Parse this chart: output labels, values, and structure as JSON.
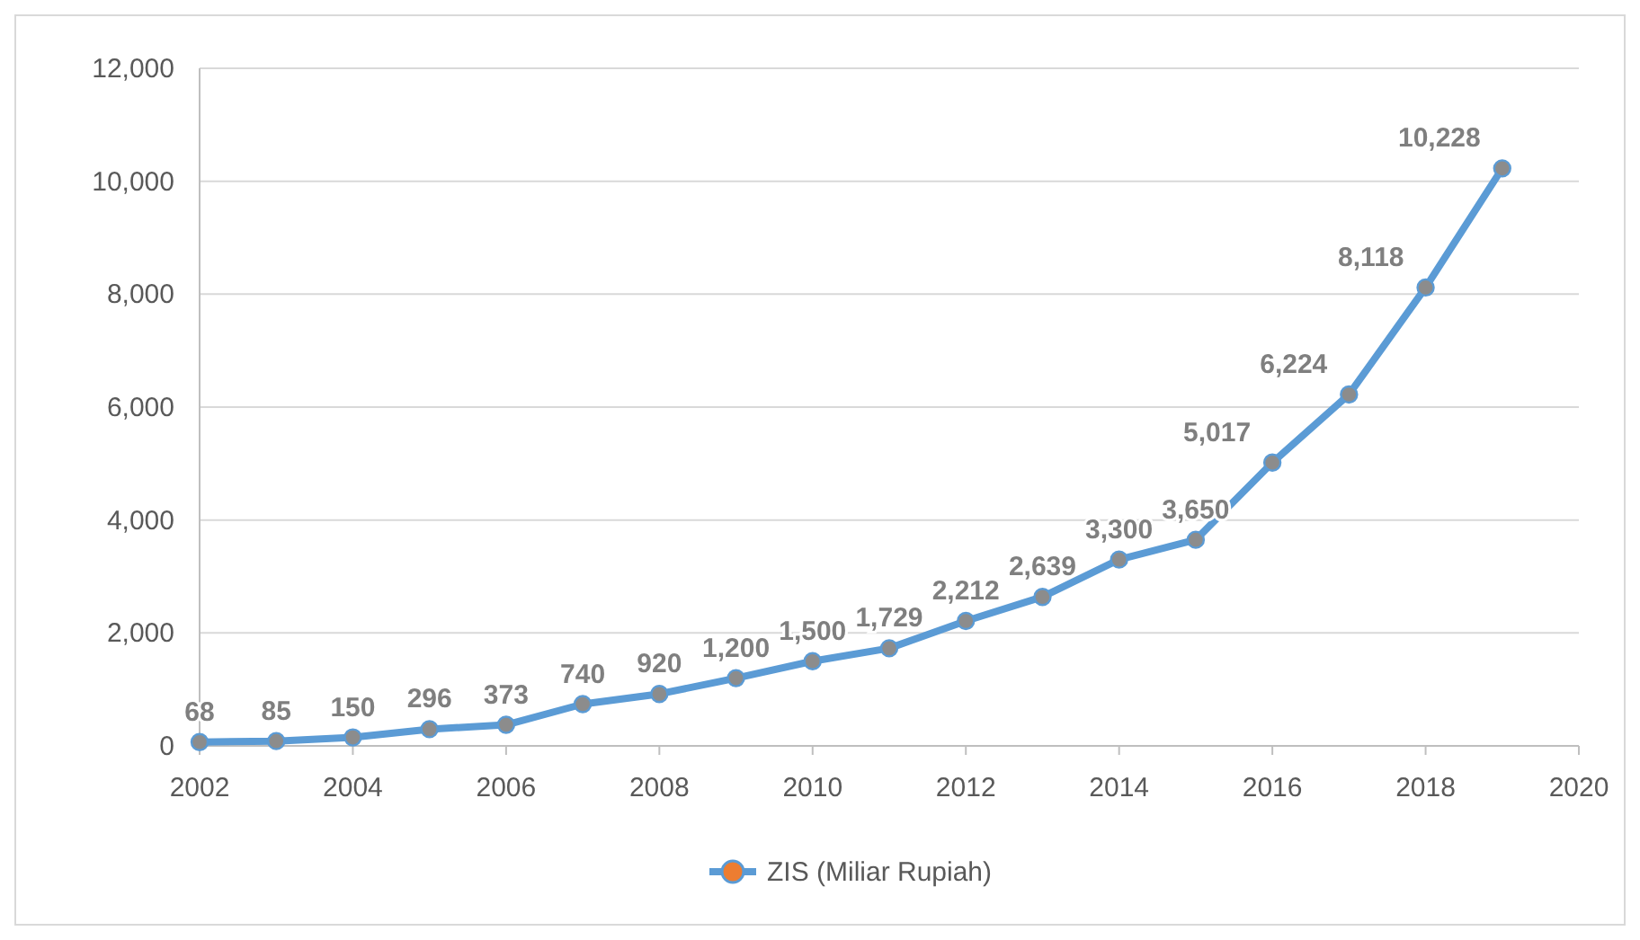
{
  "chart_data": {
    "type": "line",
    "x": [
      2002,
      2003,
      2004,
      2005,
      2006,
      2007,
      2008,
      2009,
      2010,
      2011,
      2012,
      2013,
      2014,
      2015,
      2016,
      2017,
      2018,
      2019
    ],
    "series": [
      {
        "name": "ZIS (Miliar Rupiah)",
        "color": "#5b9bd5",
        "values": [
          68,
          85,
          150,
          296,
          373,
          740,
          920,
          1200,
          1500,
          1729,
          2212,
          2639,
          3300,
          3650,
          5017,
          6224,
          8118,
          10228
        ],
        "value_labels": [
          "68",
          "85",
          "150",
          "296",
          "373",
          "740",
          "920",
          "1,200",
          "1,500",
          "1,729",
          "2,212",
          "2,639",
          "3,300",
          "3,650",
          "5,017",
          "6,224",
          "8,118",
          "10,228"
        ]
      }
    ],
    "xlim": [
      2002,
      2020
    ],
    "xticks": [
      2002,
      2004,
      2006,
      2008,
      2010,
      2012,
      2014,
      2016,
      2018,
      2020
    ],
    "ylim": [
      0,
      12000
    ],
    "yticks": [
      {
        "value": 0,
        "label": "0"
      },
      {
        "value": 2000,
        "label": "2,000"
      },
      {
        "value": 4000,
        "label": "4,000"
      },
      {
        "value": 6000,
        "label": "6,000"
      },
      {
        "value": 8000,
        "label": "8,000"
      },
      {
        "value": 10000,
        "label": "10,000"
      },
      {
        "value": 12000,
        "label": "12,000"
      }
    ],
    "grid": "y",
    "legend": "bottom",
    "marker": "circle",
    "line_style": "solid"
  }
}
